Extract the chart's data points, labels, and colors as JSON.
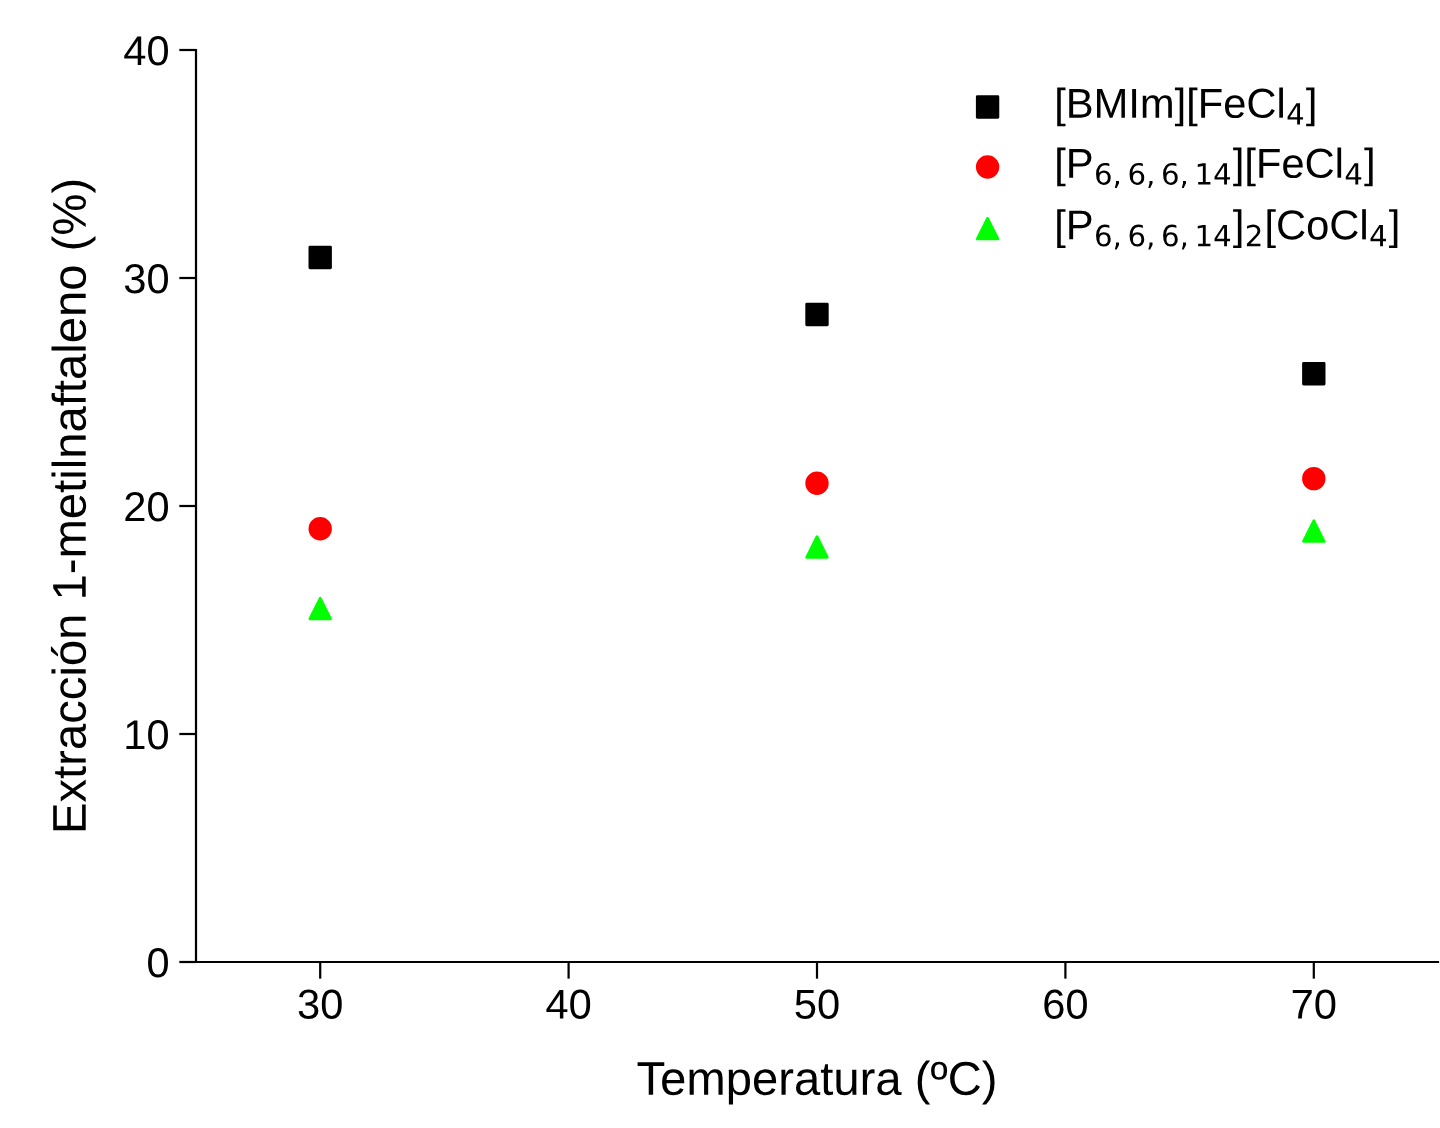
{
  "chart_data": {
    "type": "scatter",
    "xlabel": "Temperatura (ºC)",
    "ylabel": "Extracción 1-metilnaftaleno (%)",
    "x": [
      30,
      50,
      70
    ],
    "series": [
      {
        "name": "[BMIm][FeCl$_{4}$]",
        "color": "#000000",
        "marker": "square",
        "values": [
          30.9,
          28.4,
          25.8
        ]
      },
      {
        "name": "[P$_{6,6,6,14}$][FeCl$_{4}$]",
        "color": "#ff0000",
        "marker": "circle",
        "values": [
          19.0,
          21.0,
          21.2
        ]
      },
      {
        "name": "[P$_{6,6,6,14}$]$_{2}$[CoCl$_{4}$]",
        "color": "#00ff00",
        "marker": "triangle",
        "values": [
          15.5,
          18.2,
          18.9
        ]
      }
    ],
    "xlim": [
      25,
      75
    ],
    "xticks": [
      30,
      40,
      50,
      60,
      70
    ],
    "ylim": [
      0,
      40
    ],
    "yticks": [
      0,
      10,
      20,
      30,
      40
    ],
    "grid": false,
    "legend": "top right"
  }
}
